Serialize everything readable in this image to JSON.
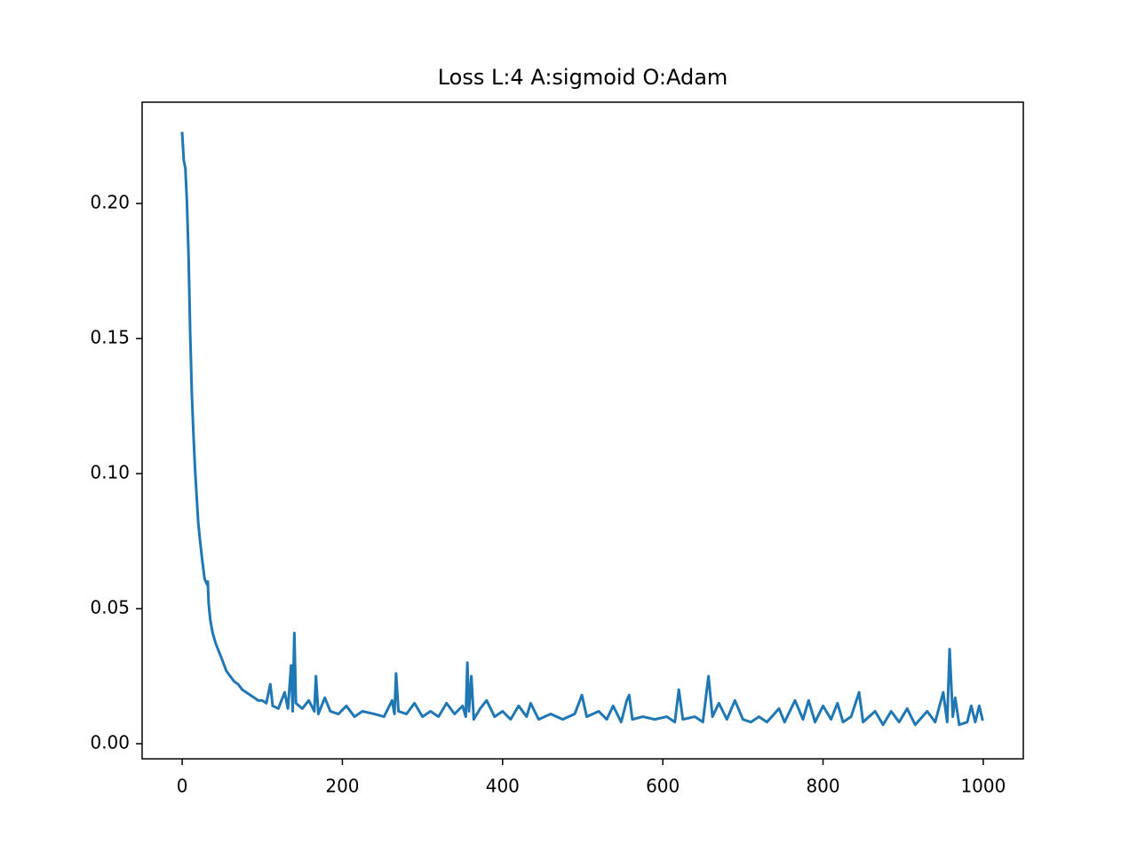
{
  "chart_data": {
    "type": "line",
    "title": "Loss L:4 A:sigmoid O:Adam",
    "color": "#1f77b4",
    "x": [
      0,
      2,
      4,
      6,
      8,
      10,
      12,
      14,
      16,
      18,
      20,
      22,
      25,
      28,
      31,
      32,
      33,
      35,
      38,
      42,
      46,
      50,
      55,
      60,
      65,
      70,
      75,
      80,
      85,
      90,
      95,
      100,
      105,
      110,
      113,
      120,
      128,
      132,
      136,
      138,
      140,
      142,
      150,
      158,
      165,
      167,
      170,
      178,
      185,
      195,
      205,
      215,
      225,
      240,
      252,
      262,
      265,
      267,
      270,
      280,
      290,
      300,
      310,
      320,
      330,
      340,
      350,
      354,
      356,
      358,
      361,
      364,
      372,
      380,
      390,
      400,
      410,
      420,
      430,
      435,
      445,
      460,
      475,
      490,
      499,
      505,
      520,
      530,
      538,
      548,
      555,
      558,
      562,
      575,
      590,
      605,
      615,
      620,
      625,
      640,
      650,
      657,
      662,
      670,
      680,
      690,
      700,
      710,
      720,
      730,
      745,
      752,
      765,
      775,
      782,
      790,
      800,
      810,
      818,
      825,
      835,
      845,
      850,
      865,
      875,
      885,
      895,
      905,
      915,
      930,
      940,
      950,
      955,
      958,
      962,
      965,
      970,
      980,
      985,
      990,
      995,
      999
    ],
    "values": [
      0.226,
      0.216,
      0.213,
      0.2,
      0.18,
      0.152,
      0.13,
      0.115,
      0.102,
      0.092,
      0.082,
      0.076,
      0.068,
      0.061,
      0.059,
      0.06,
      0.052,
      0.046,
      0.041,
      0.037,
      0.034,
      0.031,
      0.027,
      0.025,
      0.023,
      0.022,
      0.02,
      0.019,
      0.018,
      0.017,
      0.016,
      0.016,
      0.015,
      0.022,
      0.014,
      0.013,
      0.019,
      0.013,
      0.029,
      0.012,
      0.041,
      0.015,
      0.013,
      0.016,
      0.012,
      0.025,
      0.011,
      0.017,
      0.012,
      0.011,
      0.014,
      0.01,
      0.012,
      0.011,
      0.01,
      0.016,
      0.011,
      0.026,
      0.012,
      0.011,
      0.015,
      0.01,
      0.012,
      0.01,
      0.015,
      0.011,
      0.014,
      0.01,
      0.03,
      0.012,
      0.025,
      0.009,
      0.013,
      0.016,
      0.01,
      0.012,
      0.009,
      0.014,
      0.01,
      0.015,
      0.009,
      0.011,
      0.009,
      0.011,
      0.018,
      0.01,
      0.012,
      0.009,
      0.014,
      0.008,
      0.016,
      0.018,
      0.009,
      0.01,
      0.009,
      0.01,
      0.008,
      0.02,
      0.009,
      0.01,
      0.008,
      0.025,
      0.01,
      0.015,
      0.009,
      0.016,
      0.009,
      0.008,
      0.01,
      0.008,
      0.013,
      0.008,
      0.016,
      0.009,
      0.016,
      0.008,
      0.014,
      0.009,
      0.015,
      0.008,
      0.01,
      0.019,
      0.008,
      0.012,
      0.007,
      0.012,
      0.008,
      0.013,
      0.007,
      0.012,
      0.008,
      0.019,
      0.008,
      0.035,
      0.01,
      0.017,
      0.007,
      0.008,
      0.014,
      0.008,
      0.014,
      0.009
    ],
    "xlim": [
      -50,
      1050
    ],
    "xticks": [
      0,
      200,
      400,
      600,
      800,
      1000
    ],
    "ylim": [
      -0.0056,
      0.2375
    ],
    "yticks": [
      {
        "value": 0,
        "label": "0.00"
      },
      {
        "value": 0.05,
        "label": "0.05"
      },
      {
        "value": 0.1,
        "label": "0.10"
      },
      {
        "value": 0.15,
        "label": "0.15"
      },
      {
        "value": 0.2,
        "label": "0.20"
      }
    ],
    "grid": false
  }
}
